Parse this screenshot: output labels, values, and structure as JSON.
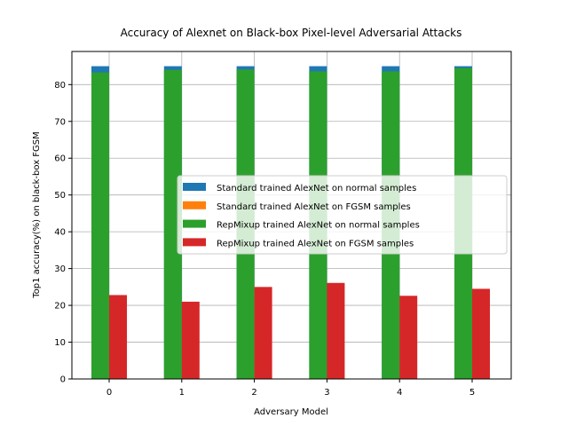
{
  "chart_data": {
    "type": "bar",
    "title": "Accuracy of Alexnet on Black-box Pixel-level Adversarial Attacks",
    "xlabel": "Adversary Model",
    "ylabel": "Top1 accuracy(%) on black-box FGSM",
    "categories": [
      "0",
      "1",
      "2",
      "3",
      "4",
      "5"
    ],
    "ylim": [
      0,
      89
    ],
    "yticks": [
      0,
      10,
      20,
      30,
      40,
      50,
      60,
      70,
      80
    ],
    "grid": true,
    "legend_position": "center-right",
    "series": [
      {
        "name": "Standard trained AlexNet on normal samples",
        "color": "#1f77b4",
        "values": [
          85.0,
          85.0,
          85.0,
          85.0,
          85.0,
          85.0
        ],
        "position": 0
      },
      {
        "name": "Standard trained AlexNet on FGSM samples",
        "color": "#ff7f0e",
        "values": [
          0,
          0,
          0,
          0,
          0,
          0
        ],
        "position": 1
      },
      {
        "name": "RepMixup trained AlexNet on normal samples",
        "color": "#2ca02c",
        "values": [
          83.3,
          84.0,
          84.1,
          83.6,
          83.6,
          84.5
        ],
        "position": 0
      },
      {
        "name": "RepMixup trained AlexNet on FGSM samples",
        "color": "#d62728",
        "values": [
          22.8,
          21.0,
          25.0,
          26.1,
          22.6,
          24.5
        ],
        "position": 1
      }
    ]
  }
}
